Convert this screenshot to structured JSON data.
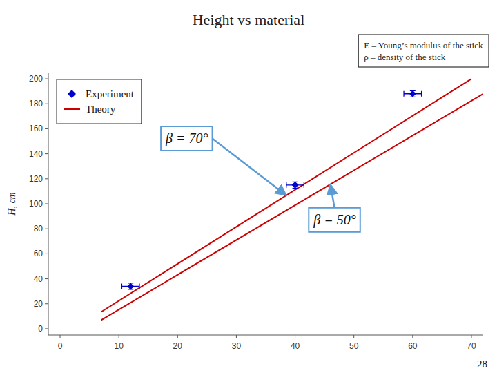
{
  "chart_data": {
    "type": "line",
    "title": "Height vs material",
    "y_label": "H, cm",
    "xlim": [
      -2,
      72
    ],
    "ylim": [
      -5,
      205
    ],
    "xticks": [
      0,
      10,
      20,
      30,
      40,
      50,
      60,
      70
    ],
    "yticks": [
      0,
      20,
      40,
      60,
      80,
      100,
      120,
      140,
      160,
      180,
      200
    ],
    "grid": false,
    "legend": "upper left",
    "annotations": [
      "E – Young’s modulus of the stick",
      "ρ – density of the stick"
    ],
    "page_number": "28",
    "series": [
      {
        "name": "Theory",
        "type": "line",
        "color": "#cc0000",
        "x": [
          7,
          70
        ],
        "values": [
          13.5,
          200
        ],
        "annotation": {
          "text": "β = 70°",
          "color": "#5b9bd5"
        }
      },
      {
        "type": "line",
        "color": "#cc0000",
        "x": [
          7,
          72
        ],
        "values": [
          7,
          188
        ],
        "annotation": {
          "text": "β = 50°",
          "color": "#5b9bd5"
        }
      },
      {
        "name": "Experiment",
        "type": "scatter",
        "marker": "diamond",
        "color": "#0000cc",
        "x": [
          12,
          60
        ],
        "values": [
          34,
          188
        ],
        "x_errors": [
          1.5,
          1.5
        ],
        "errors": [
          2.5,
          2.5
        ]
      },
      {
        "type": "scatter",
        "marker": "diamond",
        "color": "#0000cc",
        "x": [
          40
        ],
        "values": [
          115
        ],
        "x_errors": [
          1.5
        ],
        "errors": [
          2.5
        ]
      }
    ]
  }
}
